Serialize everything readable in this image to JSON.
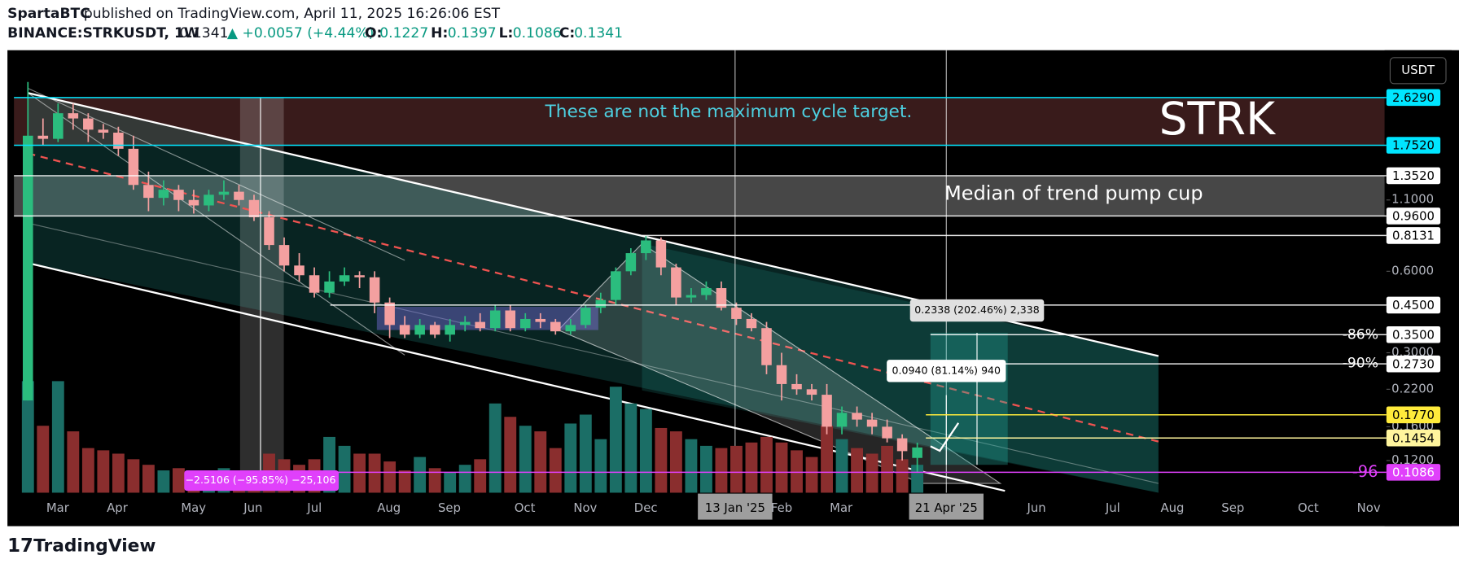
{
  "header": {
    "publisher": "SpartaBTC",
    "published": "published on TradingView.com, April 11, 2025 16:26:06 EST",
    "symbol": "BINANCE:STRKUSDT, 1W",
    "change": "▲ +0.0057 (+4.44%)",
    "o": "O:",
    "h": "H:",
    "l": "L:",
    "c": "C:"
  },
  "chart_data": {
    "type": "candlestick",
    "log_scale": true,
    "currency": "USDT",
    "ylim": [
      0.0857,
      3.9
    ],
    "yticks": [
      {
        "value": 1.1,
        "label": "1.1000"
      },
      {
        "value": 0.6,
        "label": "0.6000"
      },
      {
        "value": 0.3,
        "label": "0.3000"
      },
      {
        "value": 0.22,
        "label": "0.2200"
      },
      {
        "value": 0.16,
        "label": "0.1600"
      },
      {
        "value": 0.12,
        "label": "0.1200"
      }
    ],
    "levels": [
      {
        "value": 2.629,
        "label": "2.6290",
        "color": "#00e5ff"
      },
      {
        "value": 1.752,
        "label": "1.7520",
        "color": "#00e5ff"
      },
      {
        "value": 1.352,
        "label": "1.3520",
        "color": "#ffffff"
      },
      {
        "value": 0.96,
        "label": "0.9600",
        "color": "#ffffff"
      },
      {
        "value": 0.8131,
        "label": "0.8131",
        "color": "#ffffff"
      },
      {
        "value": 0.45,
        "label": "0.4500",
        "color": "#ffffff"
      },
      {
        "value": 0.35,
        "label": "0.3500",
        "color": "#ffffff"
      },
      {
        "value": 0.273,
        "label": "0.2730",
        "color": "#ffffff"
      },
      {
        "value": 0.177,
        "label": "0.1770",
        "color": "#ffeb3b"
      },
      {
        "value": 0.1454,
        "label": "0.1454",
        "color": "#fff59d"
      },
      {
        "value": 0.1086,
        "label": "0.1086",
        "color": "#e040fb"
      }
    ],
    "x_labels": [
      "Mar",
      "Apr",
      "May",
      "Jun",
      "Jul",
      "Aug",
      "Sep",
      "Oct",
      "Nov",
      "Dec",
      "13 Jan '25",
      "Feb",
      "Mar",
      "21 Apr '25",
      "Jun",
      "Jul",
      "Aug",
      "Sep",
      "Oct",
      "Nov"
    ],
    "colors": {
      "up": "#2bbd7e",
      "down": "#f4a0a0",
      "volume_up": "#1b6e66",
      "volume_down": "#8a2e2e"
    },
    "candles": [
      [
        0.2,
        3.0,
        0.2,
        1.9
      ],
      [
        1.9,
        2.2,
        1.75,
        1.85
      ],
      [
        1.85,
        2.5,
        1.8,
        2.3
      ],
      [
        2.3,
        2.5,
        2.0,
        2.2
      ],
      [
        2.2,
        2.3,
        1.8,
        2.0
      ],
      [
        2.0,
        2.1,
        1.85,
        1.95
      ],
      [
        1.95,
        2.05,
        1.6,
        1.7
      ],
      [
        1.7,
        1.9,
        1.2,
        1.25
      ],
      [
        1.25,
        1.4,
        1.0,
        1.12
      ],
      [
        1.12,
        1.3,
        1.05,
        1.2
      ],
      [
        1.2,
        1.25,
        1.0,
        1.1
      ],
      [
        1.1,
        1.2,
        0.98,
        1.05
      ],
      [
        1.05,
        1.2,
        1.0,
        1.15
      ],
      [
        1.15,
        1.3,
        1.1,
        1.18
      ],
      [
        1.18,
        1.25,
        1.05,
        1.1
      ],
      [
        1.1,
        1.15,
        0.92,
        0.95
      ],
      [
        0.95,
        1.0,
        0.72,
        0.75
      ],
      [
        0.75,
        0.8,
        0.6,
        0.63
      ],
      [
        0.63,
        0.7,
        0.55,
        0.58
      ],
      [
        0.58,
        0.62,
        0.48,
        0.5
      ],
      [
        0.5,
        0.6,
        0.48,
        0.55
      ],
      [
        0.55,
        0.62,
        0.53,
        0.58
      ],
      [
        0.58,
        0.6,
        0.52,
        0.57
      ],
      [
        0.57,
        0.6,
        0.42,
        0.46
      ],
      [
        0.46,
        0.48,
        0.34,
        0.38
      ],
      [
        0.38,
        0.41,
        0.34,
        0.35
      ],
      [
        0.35,
        0.4,
        0.34,
        0.38
      ],
      [
        0.38,
        0.39,
        0.34,
        0.35
      ],
      [
        0.35,
        0.4,
        0.33,
        0.38
      ],
      [
        0.38,
        0.41,
        0.36,
        0.39
      ],
      [
        0.39,
        0.42,
        0.36,
        0.37
      ],
      [
        0.37,
        0.45,
        0.36,
        0.43
      ],
      [
        0.43,
        0.45,
        0.36,
        0.37
      ],
      [
        0.37,
        0.42,
        0.36,
        0.4
      ],
      [
        0.4,
        0.42,
        0.37,
        0.39
      ],
      [
        0.39,
        0.4,
        0.35,
        0.36
      ],
      [
        0.36,
        0.4,
        0.35,
        0.38
      ],
      [
        0.38,
        0.45,
        0.37,
        0.44
      ],
      [
        0.44,
        0.5,
        0.42,
        0.47
      ],
      [
        0.47,
        0.62,
        0.45,
        0.6
      ],
      [
        0.6,
        0.73,
        0.58,
        0.7
      ],
      [
        0.7,
        0.81,
        0.66,
        0.78
      ],
      [
        0.78,
        0.8,
        0.58,
        0.62
      ],
      [
        0.62,
        0.64,
        0.45,
        0.48
      ],
      [
        0.48,
        0.52,
        0.46,
        0.49
      ],
      [
        0.49,
        0.55,
        0.47,
        0.52
      ],
      [
        0.52,
        0.55,
        0.43,
        0.44
      ],
      [
        0.44,
        0.46,
        0.38,
        0.4
      ],
      [
        0.4,
        0.42,
        0.36,
        0.37
      ],
      [
        0.37,
        0.39,
        0.25,
        0.27
      ],
      [
        0.27,
        0.3,
        0.2,
        0.23
      ],
      [
        0.23,
        0.25,
        0.21,
        0.22
      ],
      [
        0.22,
        0.23,
        0.2,
        0.21
      ],
      [
        0.21,
        0.23,
        0.15,
        0.16
      ],
      [
        0.16,
        0.19,
        0.15,
        0.18
      ],
      [
        0.18,
        0.19,
        0.16,
        0.17
      ],
      [
        0.17,
        0.18,
        0.15,
        0.16
      ],
      [
        0.16,
        0.17,
        0.14,
        0.145
      ],
      [
        0.145,
        0.15,
        0.12,
        0.13
      ],
      [
        0.1227,
        0.1397,
        0.1086,
        0.1341
      ]
    ],
    "volumes": [
      100,
      60,
      100,
      55,
      40,
      38,
      35,
      30,
      25,
      20,
      22,
      18,
      20,
      22,
      15,
      20,
      35,
      30,
      25,
      30,
      50,
      42,
      35,
      35,
      28,
      20,
      32,
      22,
      18,
      25,
      30,
      80,
      68,
      60,
      55,
      40,
      62,
      70,
      48,
      95,
      80,
      75,
      58,
      55,
      48,
      42,
      40,
      42,
      45,
      50,
      45,
      38,
      32,
      60,
      48,
      40,
      35,
      42,
      30,
      25
    ],
    "annotations": [
      "These are not the maximum cycle target.",
      "STRK",
      "Median of trend pump cup",
      "0.2338 (202.46%) 2,338",
      "0.0940 (81.14%) 940",
      "−2.5106 (−95.85%) −25,106",
      "-86%",
      "-90%",
      "-96"
    ]
  },
  "footer": {
    "brand": "TradingView"
  }
}
